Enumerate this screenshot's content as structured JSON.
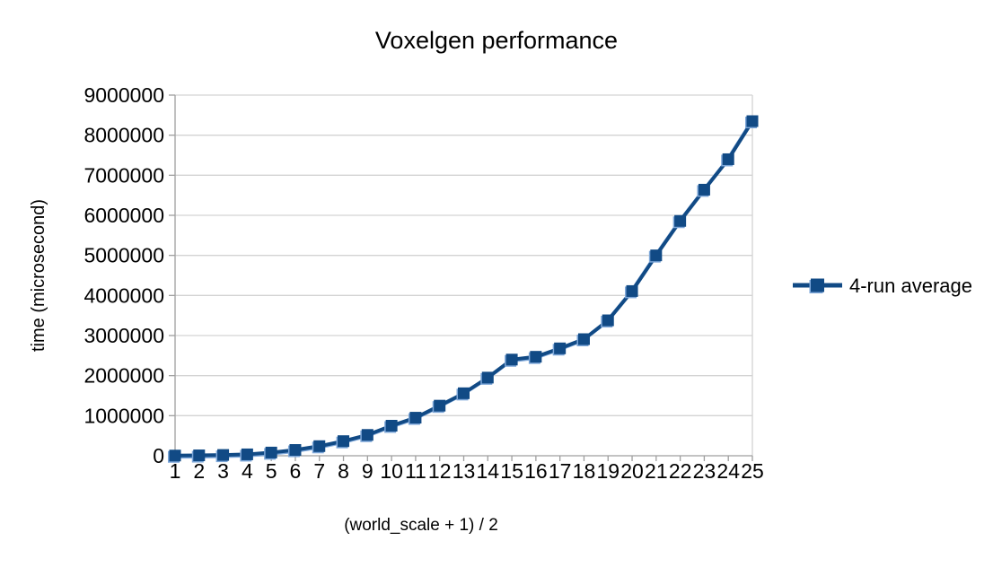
{
  "chart_data": {
    "type": "line",
    "title": "Voxelgen performance",
    "xlabel": "(world_scale + 1) / 2",
    "ylabel": "time (microsecond)",
    "grid": "horizontal",
    "legend_position": "right",
    "ylim": [
      0,
      9000000
    ],
    "y_ticks": [
      0,
      1000000,
      2000000,
      3000000,
      4000000,
      5000000,
      6000000,
      7000000,
      8000000,
      9000000
    ],
    "categories": [
      1,
      2,
      3,
      4,
      5,
      6,
      7,
      8,
      9,
      10,
      11,
      12,
      13,
      14,
      15,
      16,
      17,
      18,
      19,
      20,
      21,
      22,
      23,
      24,
      25
    ],
    "series": [
      {
        "name": "4-run average",
        "marker": "square",
        "values": [
          5000,
          10000,
          20000,
          35000,
          80000,
          145000,
          240000,
          365000,
          520000,
          750000,
          950000,
          1250000,
          1560000,
          1950000,
          2400000,
          2470000,
          2680000,
          2910000,
          3380000,
          4110000,
          5000000,
          5860000,
          6640000,
          7400000,
          8350000
        ]
      }
    ],
    "colors": {
      "series": "#114a85",
      "marker_edge": "#7da7d9",
      "gridline": "#d3d3d3",
      "axis": "#9f9f9f",
      "text": "#000000",
      "background": "#ffffff"
    }
  }
}
